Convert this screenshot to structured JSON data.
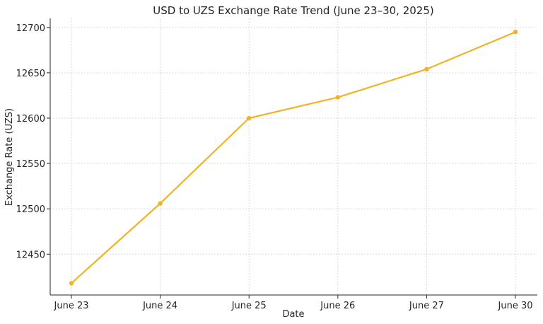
{
  "chart_data": {
    "type": "line",
    "title": "USD to UZS Exchange Rate Trend (June 23–30, 2025)",
    "xlabel": "Date",
    "ylabel": "Exchange Rate (UZS)",
    "categories": [
      "June 23",
      "June 24",
      "June 25",
      "June 26",
      "June 27",
      "June 30"
    ],
    "series": [
      {
        "values": [
          12418,
          12506,
          12600,
          12623,
          12654,
          12695
        ],
        "color": "#f0b323"
      }
    ],
    "ylim": [
      12405,
      12710
    ],
    "yticks": [
      12450,
      12500,
      12550,
      12600,
      12650,
      12700
    ],
    "grid": true,
    "legend": "none"
  }
}
